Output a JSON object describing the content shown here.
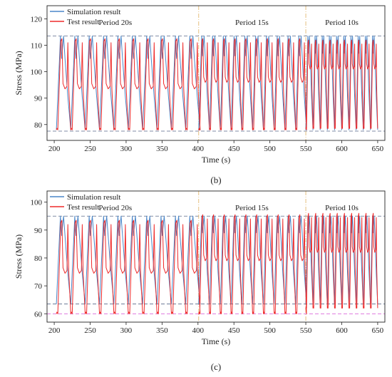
{
  "chart_data": [
    {
      "type": "line",
      "caption": "(b)",
      "xlabel": "Time (s)",
      "ylabel": "Stress (MPa)",
      "xlim": [
        190,
        660
      ],
      "ylim": [
        74,
        125
      ],
      "xticks": [
        200,
        250,
        300,
        350,
        400,
        450,
        500,
        550,
        600,
        650
      ],
      "yticks": [
        80,
        90,
        100,
        110,
        120
      ],
      "legend_position": "top-left",
      "series": [
        {
          "name": "Simulation result",
          "color": "#4a86c8"
        },
        {
          "name": "Test result",
          "color": "#ee2a2a"
        }
      ],
      "period_labels": [
        {
          "text": "Period 20s",
          "x": 285
        },
        {
          "text": "Period 15s",
          "x": 475
        },
        {
          "text": "Period 10s",
          "x": 600
        }
      ],
      "period_dividers": [
        401,
        550
      ],
      "reference_lines": [
        113.5,
        77.5
      ],
      "segments": [
        {
          "start": 203,
          "end": 401,
          "period": 20,
          "sim_range": [
            78,
            113.5
          ],
          "test_range": [
            78,
            112.5
          ],
          "test_plateau": 93.5,
          "sim_shoulder": 105
        },
        {
          "start": 401,
          "end": 550,
          "period": 15,
          "sim_range": [
            78,
            113.5
          ],
          "test_range": [
            78,
            112.5
          ],
          "test_plateau": 96,
          "sim_shoulder": 106
        },
        {
          "start": 550,
          "end": 650,
          "period": 10,
          "sim_range": [
            78,
            113.5
          ],
          "test_range": [
            78.5,
            112
          ],
          "test_plateau": 101,
          "sim_shoulder": 107
        }
      ]
    },
    {
      "type": "line",
      "caption": "(c)",
      "xlabel": "Time (s)",
      "ylabel": "Stress (MPa)",
      "xlim": [
        190,
        660
      ],
      "ylim": [
        57,
        104
      ],
      "xticks": [
        200,
        250,
        300,
        350,
        400,
        450,
        500,
        550,
        600,
        650
      ],
      "yticks": [
        60,
        70,
        80,
        90,
        100
      ],
      "legend_position": "top-left",
      "series": [
        {
          "name": "Simulation result",
          "color": "#4a86c8"
        },
        {
          "name": "Test result",
          "color": "#ee2a2a"
        }
      ],
      "period_labels": [
        {
          "text": "Period 20s",
          "x": 285
        },
        {
          "text": "Period 15s",
          "x": 475
        },
        {
          "text": "Period 10s",
          "x": 600
        }
      ],
      "period_dividers": [
        401,
        550
      ],
      "reference_lines": [
        95,
        63.5,
        60
      ],
      "segments": [
        {
          "start": 203,
          "end": 401,
          "period": 20,
          "sim_range": [
            63.5,
            95
          ],
          "test_range": [
            60,
            93.5
          ],
          "test_plateau": 74.5,
          "sim_shoulder": 88
        },
        {
          "start": 401,
          "end": 550,
          "period": 15,
          "sim_range": [
            63.5,
            95
          ],
          "test_range": [
            60,
            95.5
          ],
          "test_plateau": 79,
          "sim_shoulder": 89
        },
        {
          "start": 550,
          "end": 650,
          "period": 10,
          "sim_range": [
            63.5,
            95
          ],
          "test_range": [
            62,
            96
          ],
          "test_plateau": 82,
          "sim_shoulder": 89
        }
      ]
    }
  ]
}
